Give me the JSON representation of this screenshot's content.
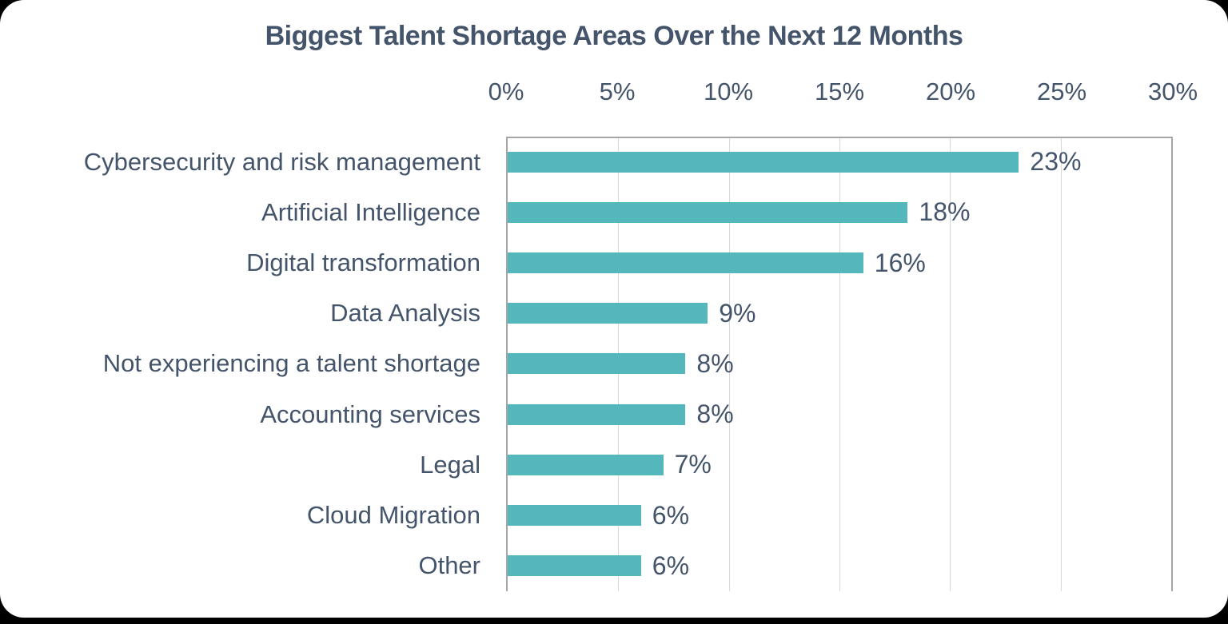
{
  "page": {
    "background_color": "#000000",
    "card_background_color": "#FFFFFF"
  },
  "chart_data": {
    "type": "bar",
    "orientation": "horizontal",
    "title": "Biggest Talent Shortage Areas Over the Next 12 Months",
    "categories": [
      "Cybersecurity and risk management",
      "Artificial Intelligence",
      "Digital transformation",
      "Data Analysis",
      "Not experiencing a talent shortage",
      "Accounting services",
      "Legal",
      "Cloud Migration",
      "Other"
    ],
    "values": [
      23,
      18,
      16,
      9,
      8,
      8,
      7,
      6,
      6
    ],
    "value_labels": [
      "23%",
      "18%",
      "16%",
      "9%",
      "8%",
      "8%",
      "7%",
      "6%",
      "6%"
    ],
    "x_ticks": [
      "0%",
      "5%",
      "10%",
      "15%",
      "20%",
      "25%",
      "30%"
    ],
    "x_tick_values": [
      0,
      5,
      10,
      15,
      20,
      25,
      30
    ],
    "xlim": [
      0,
      30
    ],
    "xlabel": "",
    "ylabel": "",
    "axis_labels_position": "top",
    "grid": true,
    "legend": false,
    "colors": {
      "bar": "#54B7BC",
      "text": "#44546A",
      "gridline": "#D9D9D9",
      "plot_border": "#A6A6A6"
    }
  }
}
